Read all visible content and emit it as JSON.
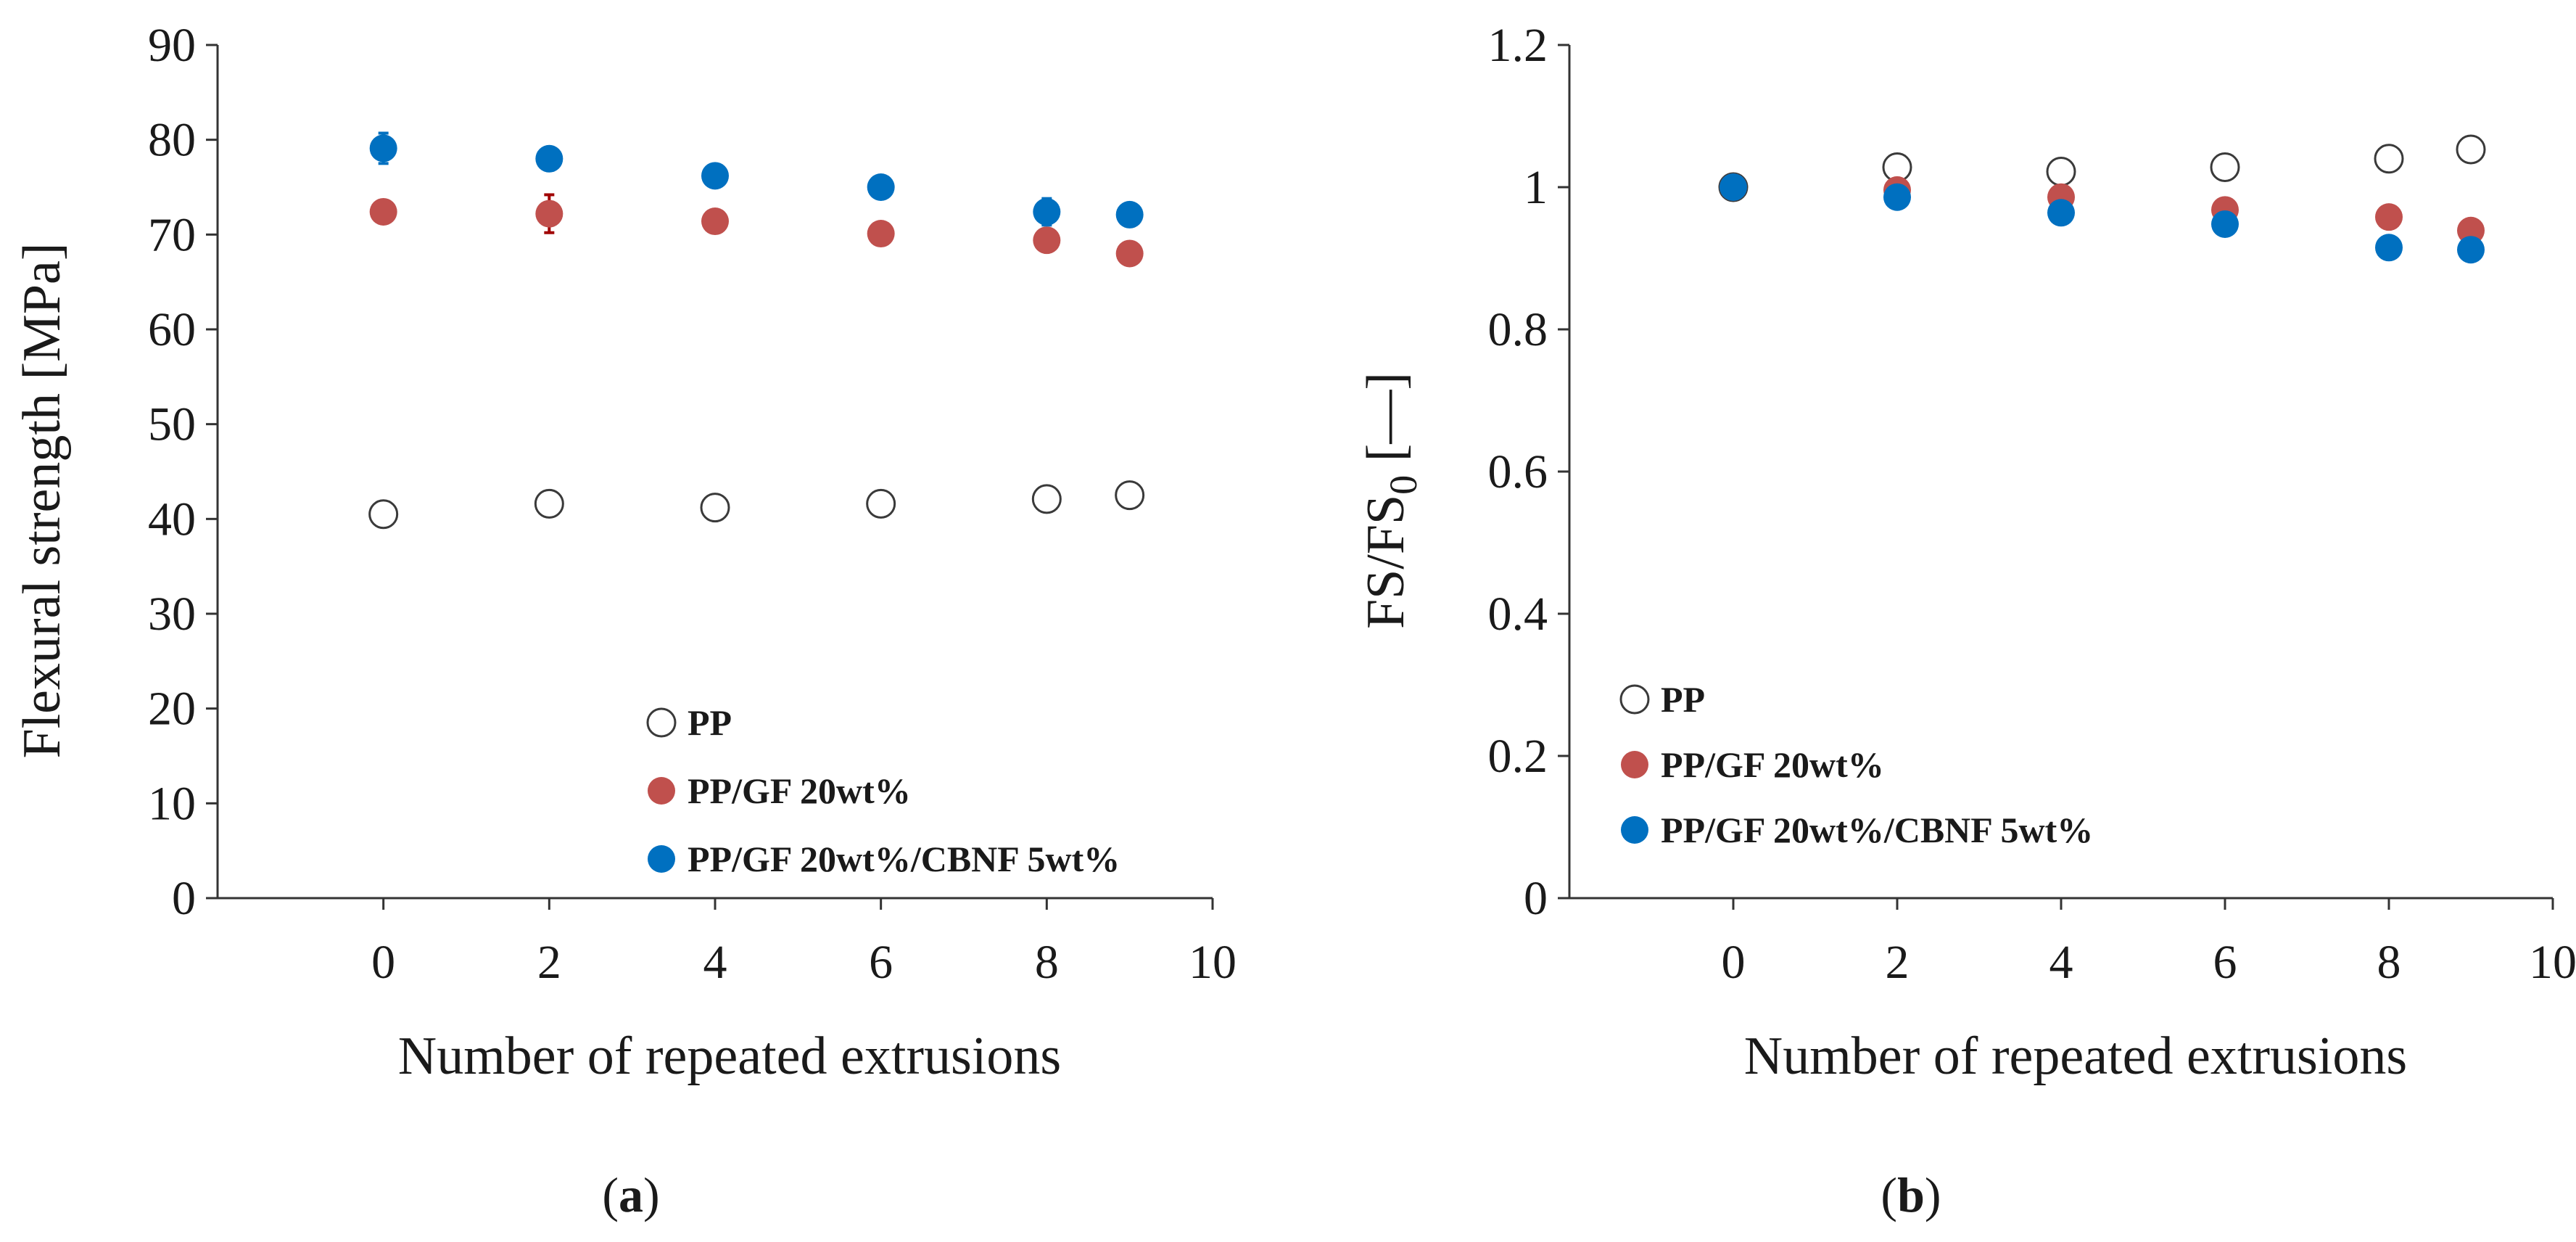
{
  "colors": {
    "pp_edge": "#3a3a3a",
    "pp_fill": "#ffffff",
    "gf": "#c0504d",
    "cbnf": "#0070c0",
    "axis": "#333333",
    "gf_errorbar": "#a00000"
  },
  "chart_data": [
    {
      "type": "scatter",
      "panel_label": "a",
      "xlabel": "Number of repeated extrusions",
      "ylabel": "Flexural strength [MPa]",
      "xlim": [
        -2,
        10
      ],
      "ylim": [
        0,
        90
      ],
      "xticks": [
        0,
        2,
        4,
        6,
        8,
        10
      ],
      "yticks": [
        0,
        10,
        20,
        30,
        40,
        50,
        60,
        70,
        80,
        90
      ],
      "grid": false,
      "legend_position": "bottom-right",
      "series": [
        {
          "name": "PP",
          "key": "pp",
          "marker": "open-circle",
          "x": [
            0,
            2,
            4,
            6,
            8,
            9
          ],
          "y": [
            40.5,
            41.6,
            41.2,
            41.6,
            42.1,
            42.5
          ],
          "err": [
            0,
            0,
            0,
            0,
            0,
            0
          ]
        },
        {
          "name": "PP/GF 20wt%",
          "key": "gf",
          "marker": "filled-circle",
          "x": [
            0,
            2,
            4,
            6,
            8,
            9
          ],
          "y": [
            72.4,
            72.2,
            71.4,
            70.1,
            69.4,
            68.0
          ],
          "err": [
            0.8,
            2.0,
            0.6,
            1.0,
            0.8,
            0.6
          ]
        },
        {
          "name": "PP/GF 20wt%/CBNF 5wt%",
          "key": "cbnf",
          "marker": "filled-circle",
          "x": [
            0,
            2,
            4,
            6,
            8,
            9
          ],
          "y": [
            79.1,
            78.0,
            76.2,
            75.0,
            72.4,
            72.1
          ],
          "err": [
            1.6,
            0.5,
            0.6,
            0.6,
            1.4,
            0.5
          ]
        }
      ]
    },
    {
      "type": "scatter",
      "panel_label": "b",
      "xlabel": "Number of repeated extrusions",
      "ylabel": "FS/FS",
      "ylabel_sub": "0",
      "ylabel_unit": "[—]",
      "xlim": [
        -2,
        10
      ],
      "ylim": [
        0,
        1.2
      ],
      "xticks": [
        0,
        2,
        4,
        6,
        8,
        10
      ],
      "yticks": [
        0,
        0.2,
        0.4,
        0.6,
        0.8,
        1,
        1.2
      ],
      "grid": false,
      "legend_position": "bottom-left",
      "series": [
        {
          "name": "PP",
          "key": "pp",
          "marker": "open-circle",
          "x": [
            0,
            2,
            4,
            6,
            8,
            9
          ],
          "y": [
            1.0,
            1.028,
            1.022,
            1.028,
            1.04,
            1.053
          ],
          "err": [
            0,
            0,
            0,
            0,
            0,
            0
          ]
        },
        {
          "name": "PP/GF 20wt%",
          "key": "gf",
          "marker": "filled-circle",
          "x": [
            0,
            2,
            4,
            6,
            8,
            9
          ],
          "y": [
            1.0,
            0.996,
            0.986,
            0.968,
            0.958,
            0.939
          ],
          "err": [
            0,
            0,
            0,
            0,
            0,
            0
          ]
        },
        {
          "name": "PP/GF 20wt%/CBNF 5wt%",
          "key": "cbnf",
          "marker": "filled-circle",
          "x": [
            0,
            2,
            4,
            6,
            8,
            9
          ],
          "y": [
            1.0,
            0.986,
            0.964,
            0.948,
            0.915,
            0.912
          ],
          "err": [
            0,
            0,
            0,
            0,
            0,
            0
          ]
        }
      ]
    }
  ]
}
